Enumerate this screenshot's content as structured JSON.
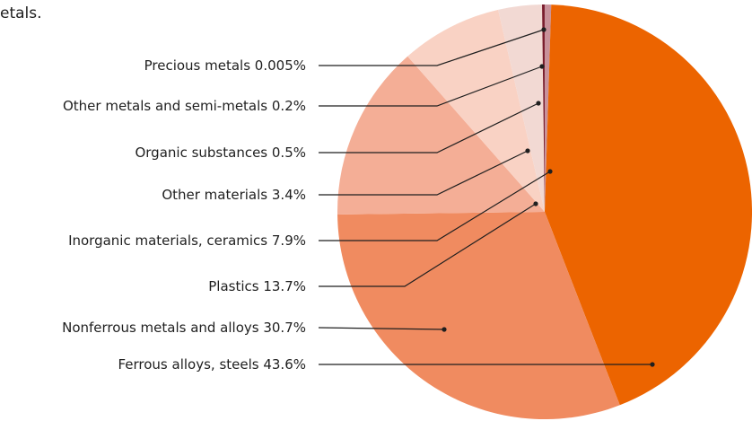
{
  "title_fragment": "etals.",
  "chart_data": {
    "type": "pie",
    "unit": "%",
    "slices": [
      {
        "label": "Precious metals 0.005%",
        "category": "Precious metals",
        "value": 0.005,
        "color": "#5c0f1e"
      },
      {
        "label": "Other metals and semi-metals 0.2%",
        "category": "Other metals and semi-metals",
        "value": 0.2,
        "color": "#7a1c2c"
      },
      {
        "label": "Organic substances 0.5%",
        "category": "Organic substances",
        "value": 0.5,
        "color": "#c8919a"
      },
      {
        "label": "Other materials 3.4%",
        "category": "Other materials",
        "value": 3.4,
        "color": "#f2d9d3"
      },
      {
        "label": "Inorganic materials, ceramics 7.9%",
        "category": "Inorganic materials, ceramics",
        "value": 7.9,
        "color": "#f9d2c4"
      },
      {
        "label": "Plastics 13.7%",
        "category": "Plastics",
        "value": 13.7,
        "color": "#f4ae96"
      },
      {
        "label": "Nonferrous metals and alloys 30.7%",
        "category": "Nonferrous metals and alloys",
        "value": 30.7,
        "color": "#f08b60"
      },
      {
        "label": "Ferrous alloys, steels 43.6%",
        "category": "Ferrous alloys, steels",
        "value": 43.6,
        "color": "#ec6400"
      }
    ]
  }
}
